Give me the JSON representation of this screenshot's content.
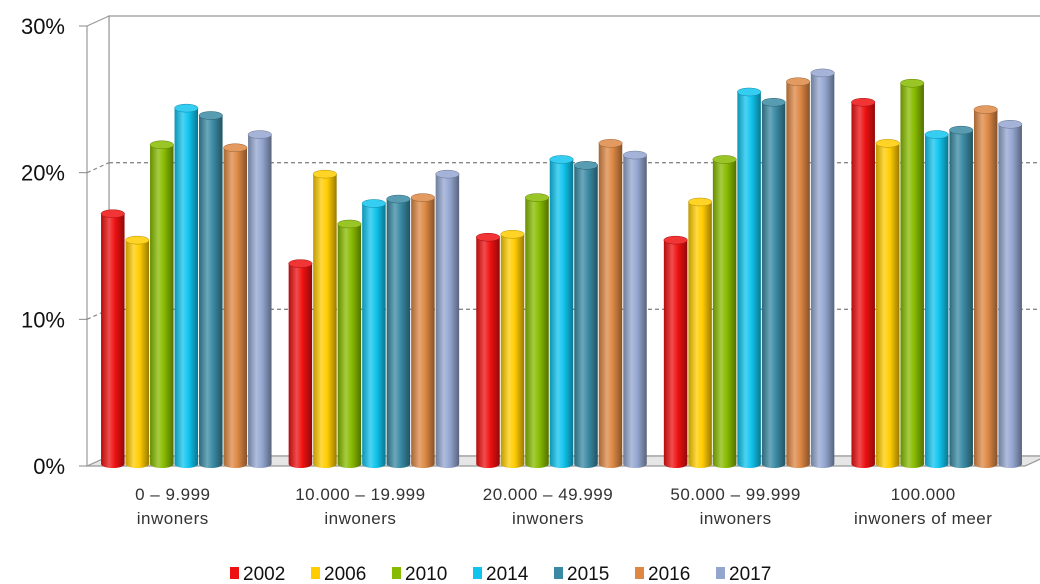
{
  "chart_data": {
    "type": "bar",
    "title": "",
    "xlabel": "",
    "ylabel": "",
    "ylim": [
      0,
      30
    ],
    "y_ticks": [
      "0%",
      "10%",
      "20%",
      "30%"
    ],
    "y_tick_values": [
      0,
      10,
      20,
      30
    ],
    "grid": true,
    "legend_position": "bottom",
    "categories": [
      [
        "0 – 9.999",
        "inwoners"
      ],
      [
        "10.000 – 19.999",
        "inwoners"
      ],
      [
        "20.000 – 49.999",
        "inwoners"
      ],
      [
        "50.000 – 99.999",
        "inwoners"
      ],
      [
        "100.000",
        "inwoners of meer"
      ]
    ],
    "series": [
      {
        "name": "2002",
        "color": "#ee1111",
        "values": [
          17.2,
          13.8,
          15.6,
          15.4,
          24.8
        ]
      },
      {
        "name": "2006",
        "color": "#ffcc00",
        "values": [
          15.4,
          19.9,
          15.8,
          18.0,
          22.0
        ]
      },
      {
        "name": "2010",
        "color": "#88bb00",
        "values": [
          21.9,
          16.5,
          18.3,
          20.9,
          26.1
        ]
      },
      {
        "name": "2014",
        "color": "#11c4ee",
        "values": [
          24.4,
          17.9,
          20.9,
          25.5,
          22.6
        ]
      },
      {
        "name": "2015",
        "color": "#3a8aa3",
        "values": [
          23.9,
          18.2,
          20.5,
          24.8,
          22.9
        ]
      },
      {
        "name": "2016",
        "color": "#dd8844",
        "values": [
          21.7,
          18.3,
          22.0,
          26.2,
          24.3
        ]
      },
      {
        "name": "2017",
        "color": "#94a6d0",
        "values": [
          22.6,
          19.9,
          21.2,
          26.8,
          23.3
        ]
      }
    ]
  }
}
